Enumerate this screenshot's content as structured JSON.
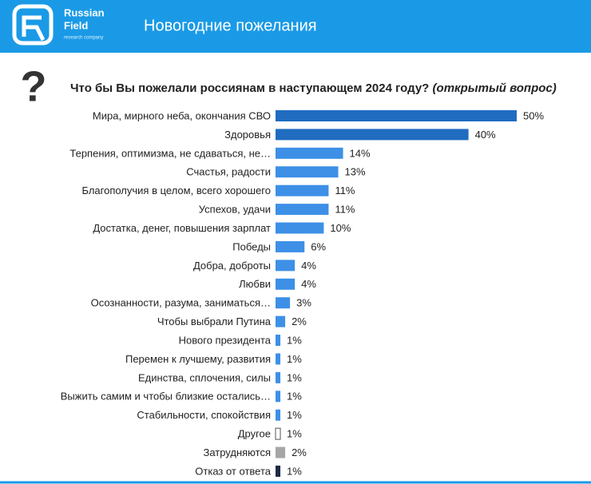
{
  "header": {
    "brand_line1": "Russian",
    "brand_line2": "Field",
    "brand_tagline": "research company",
    "title": "Новогодние пожелания",
    "icon": "?"
  },
  "chart_data": {
    "type": "bar",
    "orientation": "horizontal",
    "title": "Что бы Вы пожелали россиянам в наступающем 2024 году?",
    "subtitle": "(открытый вопрос)",
    "categories": [
      "Мира, мирного неба, окончания СВО",
      "Здоровья",
      "Терпения, оптимизма, не сдаваться, не…",
      "Счастья, радости",
      "Благополучия в целом, всего хорошего",
      "Успехов, удачи",
      "Достатка, денег, повышения зарплат",
      "Победы",
      "Добра, доброты",
      "Любви",
      "Осознанности, разума, заниматься…",
      "Чтобы выбрали Путина",
      "Нового президента",
      "Перемен к лучшему, развития",
      "Единства, сплочения, силы",
      "Выжить самим и чтобы близкие остались…",
      "Стабильности, спокойствия",
      "Другое",
      "Затрудняются",
      "Отказ от ответа"
    ],
    "values": [
      50,
      40,
      14,
      13,
      11,
      11,
      10,
      6,
      4,
      4,
      3,
      2,
      1,
      1,
      1,
      1,
      1,
      1,
      2,
      1
    ],
    "value_labels": [
      "50%",
      "40%",
      "14%",
      "13%",
      "11%",
      "11%",
      "10%",
      "6%",
      "4%",
      "4%",
      "3%",
      "2%",
      "1%",
      "1%",
      "1%",
      "1%",
      "1%",
      "1%",
      "2%",
      "1%"
    ],
    "colors": [
      "#1f6cc0",
      "#1f6cc0",
      "#3d90e6",
      "#3d90e6",
      "#3d90e6",
      "#3d90e6",
      "#3d90e6",
      "#3d90e6",
      "#3d90e6",
      "#3d90e6",
      "#3d90e6",
      "#3d90e6",
      "#3d90e6",
      "#3d90e6",
      "#3d90e6",
      "#3d90e6",
      "#3d90e6",
      "#ffffff",
      "#a6a6a6",
      "#1f2a44"
    ],
    "xlim": [
      0,
      50
    ],
    "grid": false
  }
}
